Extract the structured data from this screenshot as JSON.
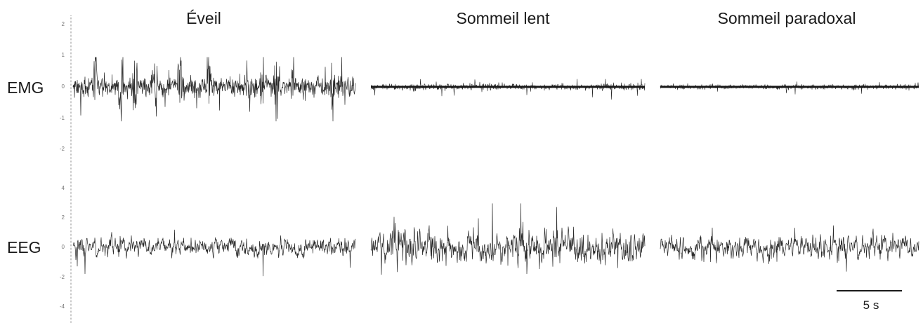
{
  "chart_data": {
    "type": "line",
    "panel_titles": [
      "Éveil",
      "Sommeil lent",
      "Sommeil paradoxal"
    ],
    "rows": [
      {
        "name": "EMG",
        "ylim": [
          -3,
          3
        ],
        "y_ticks": [
          "2",
          "1",
          "0",
          "-1",
          "-2"
        ],
        "panels": [
          {
            "stage": "Éveil",
            "baseline": 0,
            "mean_amp": 0.28,
            "noise_amp": 0.12,
            "peak_min": -1.1,
            "peak_max": 0.95,
            "burst_times": [
              0.08,
              0.17,
              0.22,
              0.29,
              0.38,
              0.48,
              0.62,
              0.67,
              0.72,
              0.78,
              0.92
            ]
          },
          {
            "stage": "Sommeil lent",
            "baseline": 0,
            "mean_amp": 0.08,
            "noise_amp": 0.06,
            "peak_min": -0.45,
            "peak_max": 0.25,
            "burst_times": []
          },
          {
            "stage": "Sommeil paradoxal",
            "baseline": 0,
            "mean_amp": 0.06,
            "noise_amp": 0.05,
            "peak_min": -0.35,
            "peak_max": 0.2,
            "burst_times": []
          }
        ]
      },
      {
        "name": "EEG",
        "ylim": [
          -5,
          5
        ],
        "y_ticks": [
          "4",
          "2",
          "0",
          "-2",
          "-4"
        ],
        "panels": [
          {
            "stage": "Éveil",
            "baseline": 0,
            "mean_amp": 0.45,
            "noise_amp": 0.25,
            "peak_min": -1.9,
            "peak_max": 1.3,
            "burst_times": []
          },
          {
            "stage": "Sommeil lent",
            "baseline": 0,
            "mean_amp": 0.9,
            "noise_amp": 0.3,
            "peak_min": -2.1,
            "peak_max": 2.9,
            "burst_times": []
          },
          {
            "stage": "Sommeil paradoxal",
            "baseline": 0,
            "mean_amp": 0.55,
            "noise_amp": 0.35,
            "peak_min": -1.6,
            "peak_max": 1.5,
            "burst_times": []
          }
        ]
      }
    ],
    "scale_bar": {
      "label": "5 s",
      "seconds": 5
    },
    "trace_color": "#2a2a2a",
    "axis_color": "#888888"
  }
}
